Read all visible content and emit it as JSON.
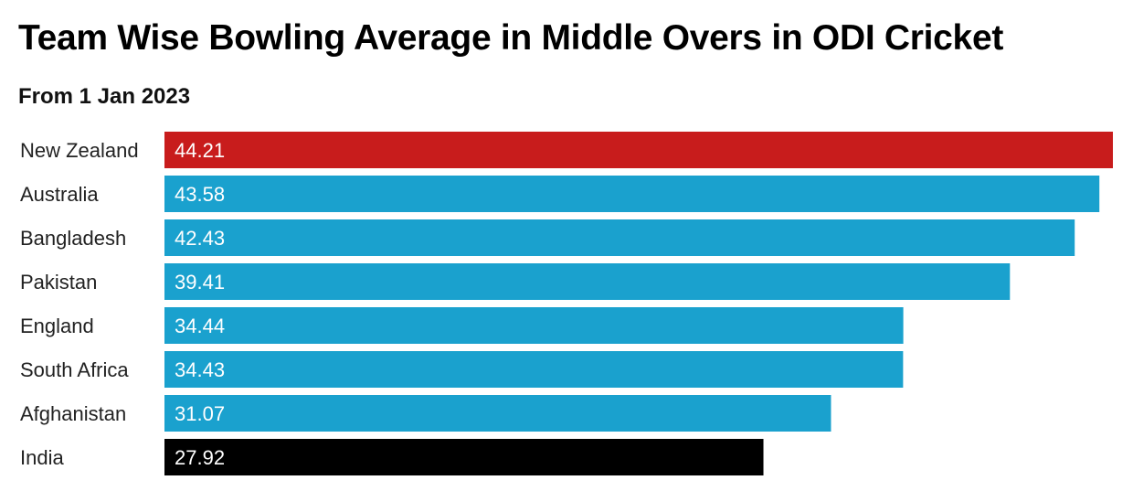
{
  "header": {
    "title": "Team Wise Bowling Average in Middle Overs in ODI Cricket",
    "subtitle": "From 1 Jan 2023"
  },
  "chart_data": {
    "type": "bar",
    "orientation": "horizontal",
    "title": "Team Wise Bowling Average in Middle Overs in ODI Cricket",
    "subtitle": "From 1 Jan 2023",
    "categories": [
      "New Zealand",
      "Australia",
      "Bangladesh",
      "Pakistan",
      "England",
      "South Africa",
      "Afghanistan",
      "India"
    ],
    "values": [
      44.21,
      43.58,
      42.43,
      39.41,
      34.44,
      34.43,
      31.07,
      27.92
    ],
    "bar_colors": [
      "#c81c1c",
      "#1aa1ce",
      "#1aa1ce",
      "#1aa1ce",
      "#1aa1ce",
      "#1aa1ce",
      "#1aa1ce",
      "#000000"
    ],
    "xlim": [
      0,
      44.21
    ],
    "grid": false,
    "legend": "none",
    "data_labels": "inside-start"
  }
}
